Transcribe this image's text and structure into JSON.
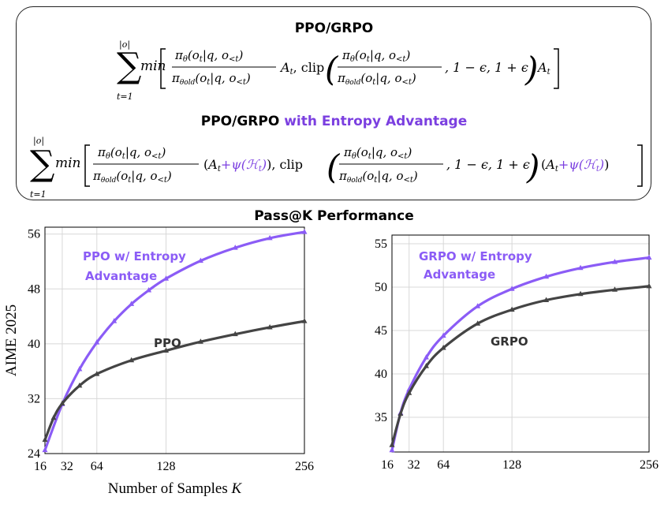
{
  "formulas": {
    "title1": "PPO/GRPO",
    "title2_main": "PPO/GRPO",
    "title2_accent": "with Entropy Advantage"
  },
  "charts_title": "Pass@K Performance",
  "colors": {
    "entropy": "#8b5cf6",
    "base": "#444444"
  },
  "chart_data": [
    {
      "type": "line",
      "title": "",
      "xlabel": "Number of Samples K",
      "ylabel": "AIME 2025",
      "xlim": [
        16,
        256
      ],
      "ylim": [
        24,
        57
      ],
      "xticks": [
        16,
        32,
        64,
        128,
        256
      ],
      "yticks": [
        24,
        32,
        40,
        48,
        56
      ],
      "grid": true,
      "series": [
        {
          "name": "PPO w/ Entropy Advantage",
          "color": "#8b5cf6",
          "x": [
            16,
            32,
            48,
            64,
            80,
            96,
            112,
            128,
            160,
            192,
            224,
            256
          ],
          "y": [
            24.5,
            31.2,
            36.3,
            40.2,
            43.3,
            45.8,
            47.8,
            49.5,
            52.1,
            54.0,
            55.4,
            56.3
          ]
        },
        {
          "name": "PPO",
          "color": "#444444",
          "x": [
            16,
            24,
            32,
            48,
            64,
            96,
            128,
            160,
            192,
            224,
            256
          ],
          "y": [
            26.0,
            29.2,
            31.3,
            33.9,
            35.6,
            37.6,
            39.0,
            40.3,
            41.4,
            42.4,
            43.3
          ]
        }
      ],
      "annotations": [
        {
          "lines": [
            "PPO w/ Entropy",
            "Advantage"
          ],
          "color": "#8b5cf6"
        },
        {
          "lines": [
            "PPO"
          ],
          "color": "#333333"
        }
      ]
    },
    {
      "type": "line",
      "title": "",
      "xlabel": "",
      "ylabel": "",
      "xlim": [
        16,
        256
      ],
      "ylim": [
        31,
        56
      ],
      "xticks": [
        16,
        32,
        64,
        128,
        256
      ],
      "yticks": [
        35,
        40,
        45,
        50,
        55
      ],
      "grid": true,
      "series": [
        {
          "name": "GRPO w/ Entropy Advantage",
          "color": "#8b5cf6",
          "x": [
            16,
            24,
            32,
            48,
            64,
            96,
            128,
            160,
            192,
            224,
            256
          ],
          "y": [
            31.2,
            35.5,
            38.2,
            41.9,
            44.4,
            47.8,
            49.8,
            51.2,
            52.2,
            52.9,
            53.4
          ]
        },
        {
          "name": "GRPO",
          "color": "#444444",
          "x": [
            16,
            24,
            32,
            48,
            64,
            96,
            128,
            160,
            192,
            224,
            256
          ],
          "y": [
            31.8,
            35.4,
            37.8,
            40.9,
            43.0,
            45.8,
            47.4,
            48.5,
            49.2,
            49.7,
            50.1
          ]
        }
      ],
      "annotations": [
        {
          "lines": [
            "GRPO w/ Entropy",
            "Advantage"
          ],
          "color": "#8b5cf6"
        },
        {
          "lines": [
            "GRPO"
          ],
          "color": "#333333"
        }
      ]
    }
  ]
}
